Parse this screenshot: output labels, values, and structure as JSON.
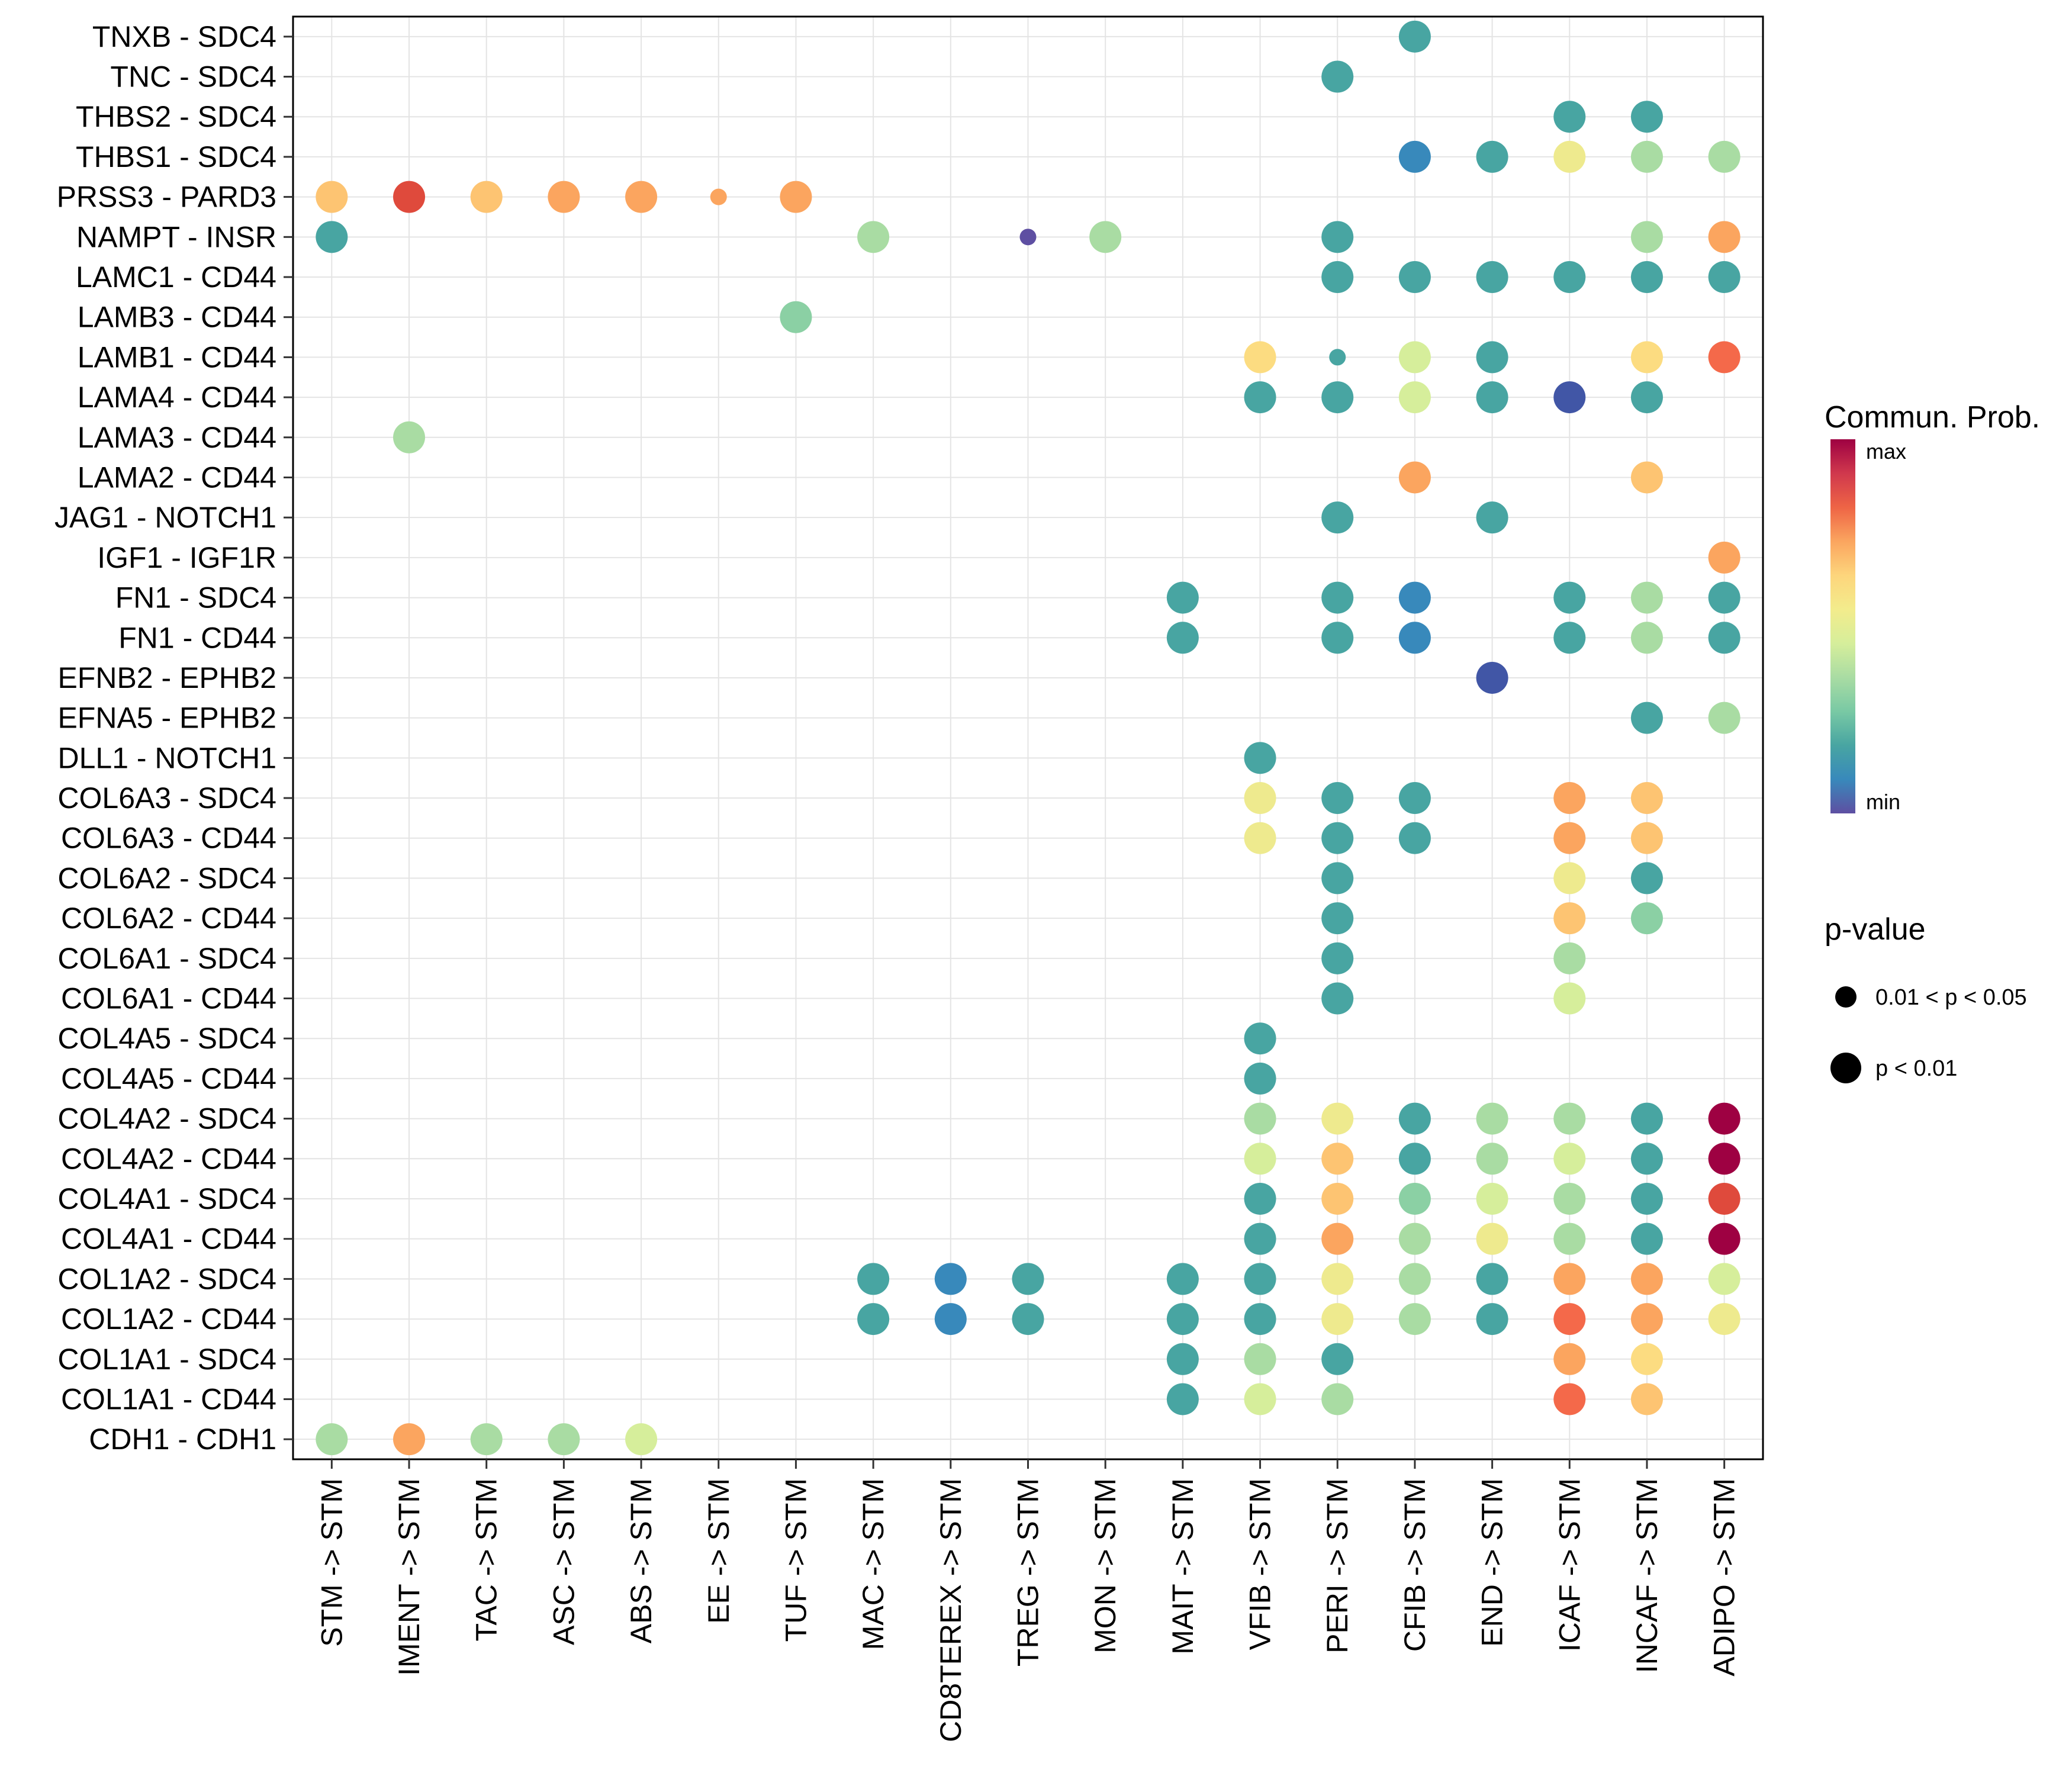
{
  "legend": {
    "color_title": "Commun. Prob.",
    "max_label": "max",
    "min_label": "min",
    "gradient_top_to_bottom": [
      "#9e0142",
      "#d0384d",
      "#ee6445",
      "#fba55f",
      "#fdd57c",
      "#f3ec8c",
      "#d6ee9b",
      "#a9dca3",
      "#79c9a4",
      "#48a5a2",
      "#3889bb",
      "#5e4fa2"
    ],
    "pvalue_title": "p-value",
    "items": [
      {
        "label": "0.01 < p < 0.05",
        "size": "S"
      },
      {
        "label": "p < 0.01",
        "size": "L"
      }
    ]
  },
  "chart_data": {
    "type": "scatter",
    "subtype": "ligand-receptor-bubble-dotplot",
    "title": "",
    "xlabel": "",
    "ylabel": "",
    "grid": true,
    "legend_position": "right",
    "x_categories": [
      "STM -> STM",
      "IMENT -> STM",
      "TAC -> STM",
      "ASC -> STM",
      "ABS -> STM",
      "EE -> STM",
      "TUF -> STM",
      "MAC -> STM",
      "CD8TEREX -> STM",
      "TREG -> STM",
      "MON -> STM",
      "MAIT -> STM",
      "VFIB -> STM",
      "PERI -> STM",
      "CFIB -> STM",
      "END -> STM",
      "ICAF -> STM",
      "INCAF -> STM",
      "ADIPO -> STM"
    ],
    "y_categories": [
      "TNXB - SDC4",
      "TNC - SDC4",
      "THBS2 - SDC4",
      "THBS1 - SDC4",
      "PRSS3 - PARD3",
      "NAMPT - INSR",
      "LAMC1 - CD44",
      "LAMB3 - CD44",
      "LAMB1 - CD44",
      "LAMA4 - CD44",
      "LAMA3 - CD44",
      "LAMA2 - CD44",
      "JAG1 - NOTCH1",
      "IGF1 - IGF1R",
      "FN1 - SDC4",
      "FN1 - CD44",
      "EFNB2 - EPHB2",
      "EFNA5 - EPHB2",
      "DLL1 - NOTCH1",
      "COL6A3 - SDC4",
      "COL6A3 - CD44",
      "COL6A2 - SDC4",
      "COL6A2 - CD44",
      "COL6A1 - SDC4",
      "COL6A1 - CD44",
      "COL4A5 - SDC4",
      "COL4A5 - CD44",
      "COL4A2 - SDC4",
      "COL4A2 - CD44",
      "COL4A1 - SDC4",
      "COL4A1 - CD44",
      "COL1A2 - SDC4",
      "COL1A2 - CD44",
      "COL1A1 - SDC4",
      "COL1A1 - CD44",
      "CDH1 - CDH1"
    ],
    "palette": {
      "maxred": "#9e0142",
      "red": "#df4a3c",
      "orangered": "#f4694a",
      "orange": "#fba55f",
      "yelloworange": "#fdc472",
      "yellow": "#fcdc81",
      "paleyellow": "#eeea8e",
      "yellowgreen": "#d6ee9b",
      "lightgreen": "#a9dca3",
      "green": "#8bd0a4",
      "teal": "#48a5a2",
      "blue": "#3889bb",
      "darkblue": "#4156a6",
      "purple": "#5e4fa2"
    },
    "point_format": [
      "y_index_from_top",
      "x_index",
      "color_key(commun_prob)",
      "size: L = p<0.01, S = 0.01<p<0.05"
    ],
    "points": [
      [
        0,
        14,
        "teal",
        "L"
      ],
      [
        1,
        13,
        "teal",
        "L"
      ],
      [
        2,
        16,
        "teal",
        "L"
      ],
      [
        2,
        17,
        "teal",
        "L"
      ],
      [
        3,
        14,
        "blue",
        "L"
      ],
      [
        3,
        15,
        "teal",
        "L"
      ],
      [
        3,
        16,
        "paleyellow",
        "L"
      ],
      [
        3,
        17,
        "lightgreen",
        "L"
      ],
      [
        3,
        18,
        "lightgreen",
        "L"
      ],
      [
        4,
        0,
        "yelloworange",
        "L"
      ],
      [
        4,
        1,
        "red",
        "L"
      ],
      [
        4,
        2,
        "yelloworange",
        "L"
      ],
      [
        4,
        3,
        "orange",
        "L"
      ],
      [
        4,
        4,
        "orange",
        "L"
      ],
      [
        4,
        5,
        "orange",
        "S"
      ],
      [
        4,
        6,
        "orange",
        "L"
      ],
      [
        5,
        0,
        "teal",
        "L"
      ],
      [
        5,
        7,
        "lightgreen",
        "L"
      ],
      [
        5,
        9,
        "purple",
        "S"
      ],
      [
        5,
        10,
        "lightgreen",
        "L"
      ],
      [
        5,
        13,
        "teal",
        "L"
      ],
      [
        5,
        17,
        "lightgreen",
        "L"
      ],
      [
        5,
        18,
        "orange",
        "L"
      ],
      [
        6,
        13,
        "teal",
        "L"
      ],
      [
        6,
        14,
        "teal",
        "L"
      ],
      [
        6,
        15,
        "teal",
        "L"
      ],
      [
        6,
        16,
        "teal",
        "L"
      ],
      [
        6,
        17,
        "teal",
        "L"
      ],
      [
        6,
        18,
        "teal",
        "L"
      ],
      [
        7,
        6,
        "green",
        "L"
      ],
      [
        8,
        12,
        "yellow",
        "L"
      ],
      [
        8,
        13,
        "teal",
        "S"
      ],
      [
        8,
        14,
        "yellowgreen",
        "L"
      ],
      [
        8,
        15,
        "teal",
        "L"
      ],
      [
        8,
        17,
        "yellow",
        "L"
      ],
      [
        8,
        18,
        "orangered",
        "L"
      ],
      [
        9,
        12,
        "teal",
        "L"
      ],
      [
        9,
        13,
        "teal",
        "L"
      ],
      [
        9,
        14,
        "yellowgreen",
        "L"
      ],
      [
        9,
        15,
        "teal",
        "L"
      ],
      [
        9,
        16,
        "darkblue",
        "L"
      ],
      [
        9,
        17,
        "teal",
        "L"
      ],
      [
        10,
        1,
        "lightgreen",
        "L"
      ],
      [
        11,
        14,
        "orange",
        "L"
      ],
      [
        11,
        17,
        "yelloworange",
        "L"
      ],
      [
        12,
        13,
        "teal",
        "L"
      ],
      [
        12,
        15,
        "teal",
        "L"
      ],
      [
        13,
        18,
        "orange",
        "L"
      ],
      [
        14,
        11,
        "teal",
        "L"
      ],
      [
        14,
        13,
        "teal",
        "L"
      ],
      [
        14,
        14,
        "blue",
        "L"
      ],
      [
        14,
        16,
        "teal",
        "L"
      ],
      [
        14,
        17,
        "lightgreen",
        "L"
      ],
      [
        14,
        18,
        "teal",
        "L"
      ],
      [
        15,
        11,
        "teal",
        "L"
      ],
      [
        15,
        13,
        "teal",
        "L"
      ],
      [
        15,
        14,
        "blue",
        "L"
      ],
      [
        15,
        16,
        "teal",
        "L"
      ],
      [
        15,
        17,
        "lightgreen",
        "L"
      ],
      [
        15,
        18,
        "teal",
        "L"
      ],
      [
        16,
        15,
        "darkblue",
        "L"
      ],
      [
        17,
        17,
        "teal",
        "L"
      ],
      [
        17,
        18,
        "lightgreen",
        "L"
      ],
      [
        18,
        12,
        "teal",
        "L"
      ],
      [
        19,
        12,
        "paleyellow",
        "L"
      ],
      [
        19,
        13,
        "teal",
        "L"
      ],
      [
        19,
        14,
        "teal",
        "L"
      ],
      [
        19,
        16,
        "orange",
        "L"
      ],
      [
        19,
        17,
        "yelloworange",
        "L"
      ],
      [
        20,
        12,
        "paleyellow",
        "L"
      ],
      [
        20,
        13,
        "teal",
        "L"
      ],
      [
        20,
        14,
        "teal",
        "L"
      ],
      [
        20,
        16,
        "orange",
        "L"
      ],
      [
        20,
        17,
        "yelloworange",
        "L"
      ],
      [
        21,
        13,
        "teal",
        "L"
      ],
      [
        21,
        16,
        "paleyellow",
        "L"
      ],
      [
        21,
        17,
        "teal",
        "L"
      ],
      [
        22,
        13,
        "teal",
        "L"
      ],
      [
        22,
        16,
        "yelloworange",
        "L"
      ],
      [
        22,
        17,
        "green",
        "L"
      ],
      [
        23,
        13,
        "teal",
        "L"
      ],
      [
        23,
        16,
        "lightgreen",
        "L"
      ],
      [
        24,
        13,
        "teal",
        "L"
      ],
      [
        24,
        16,
        "yellowgreen",
        "L"
      ],
      [
        25,
        12,
        "teal",
        "L"
      ],
      [
        26,
        12,
        "teal",
        "L"
      ],
      [
        27,
        12,
        "lightgreen",
        "L"
      ],
      [
        27,
        13,
        "paleyellow",
        "L"
      ],
      [
        27,
        14,
        "teal",
        "L"
      ],
      [
        27,
        15,
        "lightgreen",
        "L"
      ],
      [
        27,
        16,
        "lightgreen",
        "L"
      ],
      [
        27,
        17,
        "teal",
        "L"
      ],
      [
        27,
        18,
        "maxred",
        "L"
      ],
      [
        28,
        12,
        "yellowgreen",
        "L"
      ],
      [
        28,
        13,
        "yelloworange",
        "L"
      ],
      [
        28,
        14,
        "teal",
        "L"
      ],
      [
        28,
        15,
        "lightgreen",
        "L"
      ],
      [
        28,
        16,
        "yellowgreen",
        "L"
      ],
      [
        28,
        17,
        "teal",
        "L"
      ],
      [
        28,
        18,
        "maxred",
        "L"
      ],
      [
        29,
        12,
        "teal",
        "L"
      ],
      [
        29,
        13,
        "yelloworange",
        "L"
      ],
      [
        29,
        14,
        "green",
        "L"
      ],
      [
        29,
        15,
        "yellowgreen",
        "L"
      ],
      [
        29,
        16,
        "lightgreen",
        "L"
      ],
      [
        29,
        17,
        "teal",
        "L"
      ],
      [
        29,
        18,
        "red",
        "L"
      ],
      [
        30,
        12,
        "teal",
        "L"
      ],
      [
        30,
        13,
        "orange",
        "L"
      ],
      [
        30,
        14,
        "lightgreen",
        "L"
      ],
      [
        30,
        15,
        "paleyellow",
        "L"
      ],
      [
        30,
        16,
        "lightgreen",
        "L"
      ],
      [
        30,
        17,
        "teal",
        "L"
      ],
      [
        30,
        18,
        "maxred",
        "L"
      ],
      [
        31,
        7,
        "teal",
        "L"
      ],
      [
        31,
        8,
        "blue",
        "L"
      ],
      [
        31,
        9,
        "teal",
        "L"
      ],
      [
        31,
        11,
        "teal",
        "L"
      ],
      [
        31,
        12,
        "teal",
        "L"
      ],
      [
        31,
        13,
        "paleyellow",
        "L"
      ],
      [
        31,
        14,
        "lightgreen",
        "L"
      ],
      [
        31,
        15,
        "teal",
        "L"
      ],
      [
        31,
        16,
        "orange",
        "L"
      ],
      [
        31,
        17,
        "orange",
        "L"
      ],
      [
        31,
        18,
        "yellowgreen",
        "L"
      ],
      [
        32,
        7,
        "teal",
        "L"
      ],
      [
        32,
        8,
        "blue",
        "L"
      ],
      [
        32,
        9,
        "teal",
        "L"
      ],
      [
        32,
        11,
        "teal",
        "L"
      ],
      [
        32,
        12,
        "teal",
        "L"
      ],
      [
        32,
        13,
        "paleyellow",
        "L"
      ],
      [
        32,
        14,
        "lightgreen",
        "L"
      ],
      [
        32,
        15,
        "teal",
        "L"
      ],
      [
        32,
        16,
        "orangered",
        "L"
      ],
      [
        32,
        17,
        "orange",
        "L"
      ],
      [
        32,
        18,
        "paleyellow",
        "L"
      ],
      [
        33,
        11,
        "teal",
        "L"
      ],
      [
        33,
        12,
        "lightgreen",
        "L"
      ],
      [
        33,
        13,
        "teal",
        "L"
      ],
      [
        33,
        16,
        "orange",
        "L"
      ],
      [
        33,
        17,
        "yellow",
        "L"
      ],
      [
        34,
        11,
        "teal",
        "L"
      ],
      [
        34,
        12,
        "yellowgreen",
        "L"
      ],
      [
        34,
        13,
        "lightgreen",
        "L"
      ],
      [
        34,
        16,
        "orangered",
        "L"
      ],
      [
        34,
        17,
        "yelloworange",
        "L"
      ],
      [
        35,
        0,
        "lightgreen",
        "L"
      ],
      [
        35,
        1,
        "orange",
        "L"
      ],
      [
        35,
        2,
        "lightgreen",
        "L"
      ],
      [
        35,
        3,
        "lightgreen",
        "L"
      ],
      [
        35,
        4,
        "yellowgreen",
        "L"
      ]
    ]
  }
}
